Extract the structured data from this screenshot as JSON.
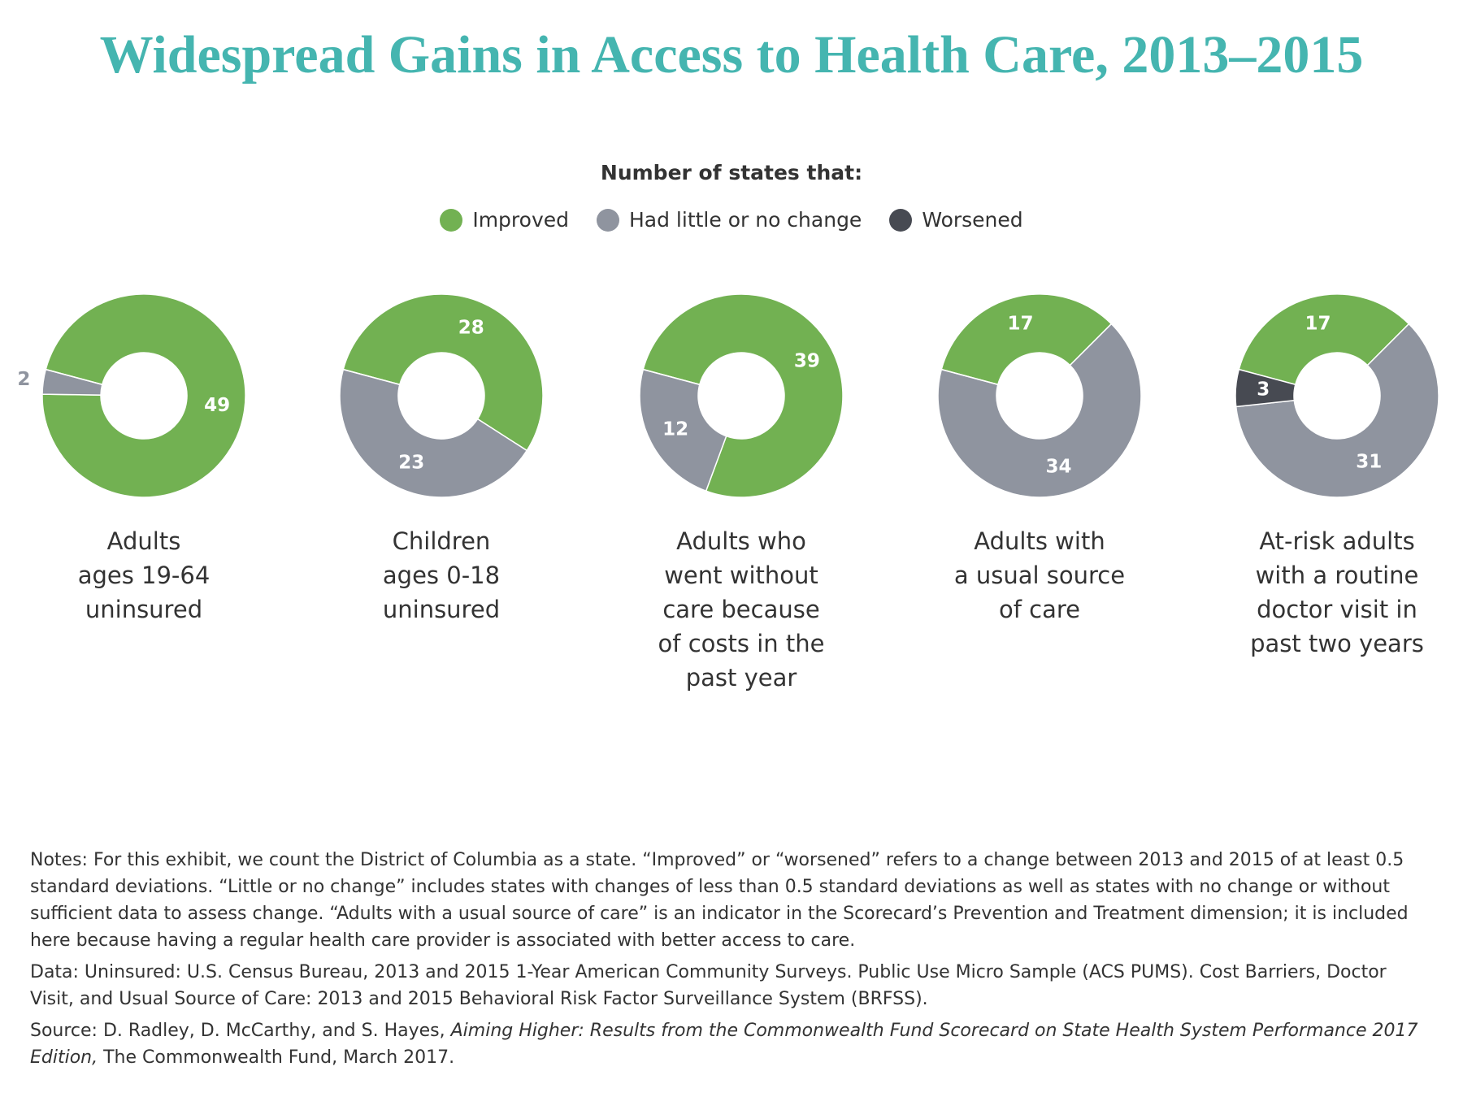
{
  "title": "Widespread Gains in Access to Health Care, 2013–2015",
  "legend_title": "Number of states that:",
  "chart_data": [
    {
      "type": "donut",
      "title": [
        "Adults",
        "ages 19-64",
        "uninsured"
      ],
      "categories": [
        "Improved",
        "Had little or no change",
        "Worsened"
      ],
      "colors": [
        "#72b152",
        "#8f949f",
        "#474a52"
      ],
      "values": [
        49,
        2,
        0
      ]
    },
    {
      "type": "donut",
      "title": [
        "Children",
        "ages 0-18",
        "uninsured"
      ],
      "categories": [
        "Improved",
        "Had little or no change",
        "Worsened"
      ],
      "colors": [
        "#72b152",
        "#8f949f",
        "#474a52"
      ],
      "values": [
        28,
        23,
        0
      ]
    },
    {
      "type": "donut",
      "title": [
        "Adults who",
        "went without",
        "care because",
        "of costs in the",
        "past year"
      ],
      "categories": [
        "Improved",
        "Had little or no change",
        "Worsened"
      ],
      "colors": [
        "#72b152",
        "#8f949f",
        "#474a52"
      ],
      "values": [
        39,
        12,
        0
      ]
    },
    {
      "type": "donut",
      "title": [
        "Adults with",
        "a usual source",
        "of care"
      ],
      "categories": [
        "Improved",
        "Had little or no change",
        "Worsened"
      ],
      "colors": [
        "#72b152",
        "#8f949f",
        "#474a52"
      ],
      "values": [
        17,
        34,
        0
      ]
    },
    {
      "type": "donut",
      "title": [
        "At-risk adults",
        "with a routine",
        "doctor visit in",
        "past two years"
      ],
      "categories": [
        "Improved",
        "Had little or no change",
        "Worsened"
      ],
      "colors": [
        "#72b152",
        "#8f949f",
        "#474a52"
      ],
      "values": [
        17,
        31,
        3
      ]
    }
  ],
  "footnotes": {
    "notes": "Notes: For this exhibit, we count the District of Columbia as a state. “Improved” or “worsened” refers to a change between 2013 and 2015 of at least 0.5 standard deviations. “Little or no change” includes states with changes of less than 0.5 standard deviations as well as states with no change or without sufficient data to assess change. “Adults with a usual source of care” is an indicator in the Scorecard’s Prevention and Treatment dimension; it is included here because having a regular health care provider is associated with better access to care.",
    "data": "Data: Uninsured: U.S. Census Bureau, 2013 and 2015 1-Year American Community Surveys. Public Use Micro Sample (ACS PUMS). Cost Barriers, Doctor Visit, and Usual Source of Care: 2013 and 2015 Behavioral Risk Factor Surveillance System (BRFSS).",
    "source": [
      "Source: D. Radley, D. McCarthy, and S. Hayes, ",
      "Aiming Higher: Results from the Commonwealth Fund Scorecard on State Health System Performance 2017 Edition,",
      " The Commonwealth Fund, March 2017."
    ]
  }
}
